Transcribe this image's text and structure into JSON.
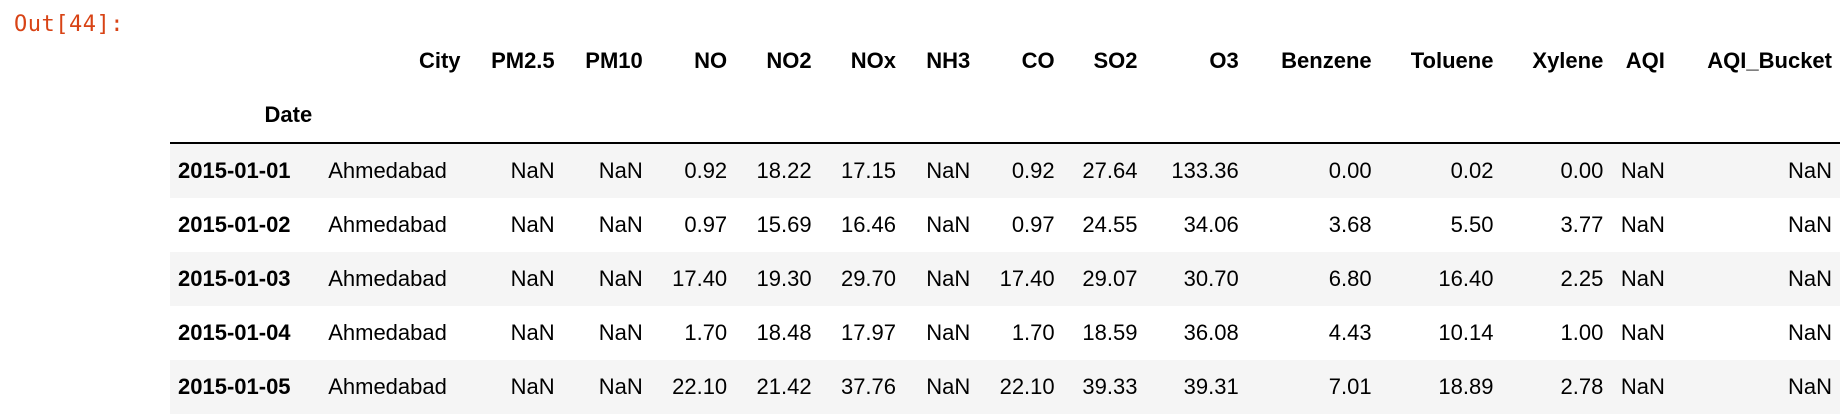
{
  "cell": {
    "out_prompt": "Out[44]:"
  },
  "table": {
    "index_name": "Date",
    "columns": [
      "City",
      "PM2.5",
      "PM10",
      "NO",
      "NO2",
      "NOx",
      "NH3",
      "CO",
      "SO2",
      "O3",
      "Benzene",
      "Toluene",
      "Xylene",
      "AQI",
      "AQI_Bucket"
    ],
    "rows": [
      {
        "index": "2015-01-01",
        "values": [
          "Ahmedabad",
          "NaN",
          "NaN",
          "0.92",
          "18.22",
          "17.15",
          "NaN",
          "0.92",
          "27.64",
          "133.36",
          "0.00",
          "0.02",
          "0.00",
          "NaN",
          "NaN"
        ]
      },
      {
        "index": "2015-01-02",
        "values": [
          "Ahmedabad",
          "NaN",
          "NaN",
          "0.97",
          "15.69",
          "16.46",
          "NaN",
          "0.97",
          "24.55",
          "34.06",
          "3.68",
          "5.50",
          "3.77",
          "NaN",
          "NaN"
        ]
      },
      {
        "index": "2015-01-03",
        "values": [
          "Ahmedabad",
          "NaN",
          "NaN",
          "17.40",
          "19.30",
          "29.70",
          "NaN",
          "17.40",
          "29.07",
          "30.70",
          "6.80",
          "16.40",
          "2.25",
          "NaN",
          "NaN"
        ]
      },
      {
        "index": "2015-01-04",
        "values": [
          "Ahmedabad",
          "NaN",
          "NaN",
          "1.70",
          "18.48",
          "17.97",
          "NaN",
          "1.70",
          "18.59",
          "36.08",
          "4.43",
          "10.14",
          "1.00",
          "NaN",
          "NaN"
        ]
      },
      {
        "index": "2015-01-05",
        "values": [
          "Ahmedabad",
          "NaN",
          "NaN",
          "22.10",
          "21.42",
          "37.76",
          "NaN",
          "22.10",
          "39.33",
          "39.31",
          "7.01",
          "18.89",
          "2.78",
          "NaN",
          "NaN"
        ]
      }
    ]
  },
  "colors": {
    "prompt": "#d84315",
    "row_stripe": "#f5f5f5"
  }
}
